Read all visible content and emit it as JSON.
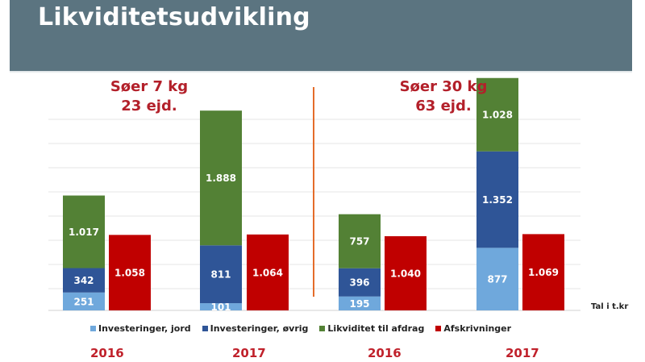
{
  "page": {
    "title": "Likviditetsudvikling",
    "unit_note": "Tal i t.kr"
  },
  "chart_data": {
    "type": "bar",
    "stacked": true,
    "grid": true,
    "ylim": [
      0,
      2500
    ],
    "colors": {
      "investeringer_jord": "#6fa8dc",
      "investeringer_ovrig": "#2f5597",
      "likviditet": "#538135",
      "afskrivninger": "#c00000"
    },
    "legend": [
      {
        "key": "investeringer_jord",
        "label": "Investeringer, jord"
      },
      {
        "key": "investeringer_ovrig",
        "label": "Investeringer, øvrig"
      },
      {
        "key": "likviditet",
        "label": "Likviditet til afdrag"
      },
      {
        "key": "afskrivninger",
        "label": "Afskrivninger"
      }
    ],
    "groups": [
      {
        "heading": [
          "Søer 7 kg",
          "23 ejd."
        ],
        "years": [
          {
            "year": "2016",
            "investeringer_jord": 251,
            "investeringer_ovrig": 342,
            "likviditet": 1017,
            "afskrivninger": 1058,
            "labels": {
              "investeringer_jord": "251",
              "investeringer_ovrig": "342",
              "likviditet": "1.017",
              "afskrivninger": "1.058"
            }
          },
          {
            "year": "2017",
            "investeringer_jord": 101,
            "investeringer_ovrig": 811,
            "likviditet": 1888,
            "afskrivninger": 1064,
            "labels": {
              "investeringer_jord": "101",
              "investeringer_ovrig": "811",
              "likviditet": "1.888",
              "afskrivninger": "1.064"
            }
          }
        ]
      },
      {
        "heading": [
          "Søer 30 kg",
          "63 ejd."
        ],
        "years": [
          {
            "year": "2016",
            "investeringer_jord": 195,
            "investeringer_ovrig": 396,
            "likviditet": 757,
            "afskrivninger": 1040,
            "labels": {
              "investeringer_jord": "195",
              "investeringer_ovrig": "396",
              "likviditet": "757",
              "afskrivninger": "1.040"
            }
          },
          {
            "year": "2017",
            "investeringer_jord": 877,
            "investeringer_ovrig": 1352,
            "likviditet": 1028,
            "afskrivninger": 1069,
            "labels": {
              "investeringer_jord": "877",
              "investeringer_ovrig": "1.352",
              "likviditet": "1.028",
              "afskrivninger": "1.069"
            }
          }
        ]
      }
    ]
  }
}
